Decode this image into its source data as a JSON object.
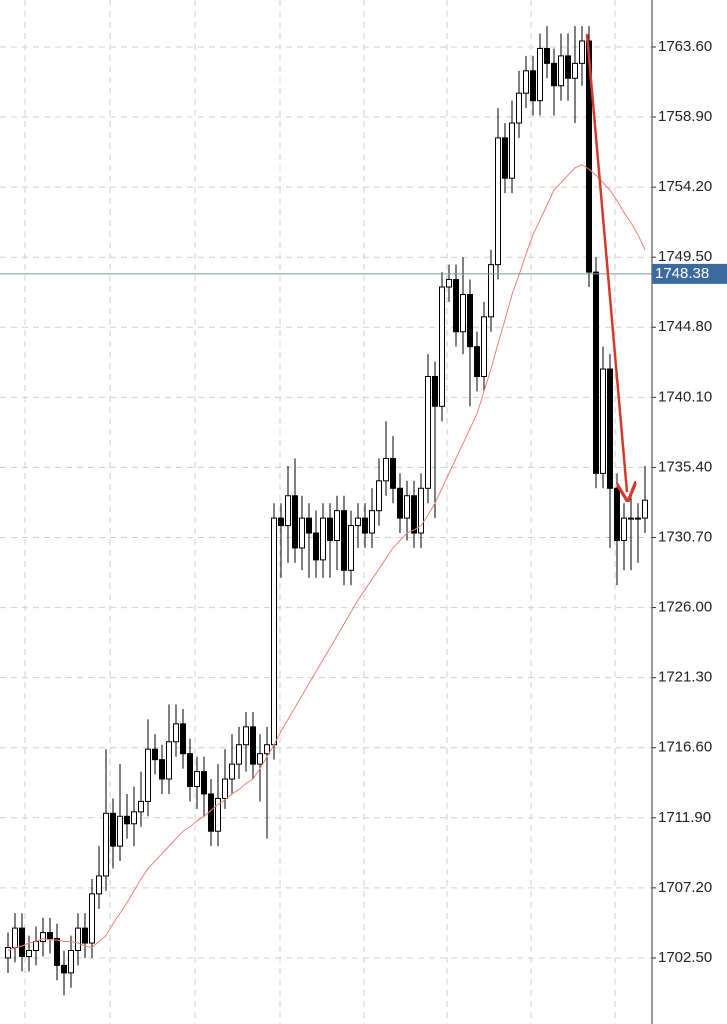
{
  "chart_data": {
    "type": "candlestick",
    "ylim": [
      1698.07,
      1766.75
    ],
    "yticks": [
      {
        "value": 1763.6,
        "label": "1763.60"
      },
      {
        "value": 1758.9,
        "label": "1758.90"
      },
      {
        "value": 1754.2,
        "label": "1754.20"
      },
      {
        "value": 1749.5,
        "label": "1749.50"
      },
      {
        "value": 1744.8,
        "label": "1744.80"
      },
      {
        "value": 1740.1,
        "label": "1740.10"
      },
      {
        "value": 1735.4,
        "label": "1735.40"
      },
      {
        "value": 1730.7,
        "label": "1730.70"
      },
      {
        "value": 1726,
        "label": "1726.00"
      },
      {
        "value": 1721.3,
        "label": "1721.30"
      },
      {
        "value": 1716.6,
        "label": "1716.60"
      },
      {
        "value": 1711.9,
        "label": "1711.90"
      },
      {
        "value": 1707.2,
        "label": "1707.20"
      },
      {
        "value": 1702.5,
        "label": "1702.50"
      }
    ],
    "grid": true,
    "up_color": "#ffffff",
    "down_color": "#000000",
    "ma_color": "#f08070",
    "price_line_color": "#7d93ab",
    "price_label_color": "#3d6a9e",
    "last_price": 1748.38,
    "open": [
      1702.5,
      1703.2,
      1704.5,
      1702.6,
      1703.0,
      1703.6,
      1704.2,
      1703.8,
      1702.0,
      1701.5,
      1703.0,
      1704.5,
      1703.5,
      1706.8,
      1708.0,
      1712.2,
      1710.0,
      1712.0,
      1711.5,
      1712.3,
      1713.0,
      1716.5,
      1715.8,
      1714.5,
      1717.0,
      1718.2,
      1716.2,
      1714.0,
      1715.0,
      1713.5,
      1711.0,
      1713.2,
      1714.5,
      1715.5,
      1716.8,
      1718.0,
      1715.5,
      1716.2,
      1716.8,
      1732.0,
      1731.5,
      1733.5,
      1730.0,
      1732.0,
      1731.0,
      1729.2,
      1732.0,
      1730.5,
      1732.5,
      1728.5,
      1731.5,
      1732.0,
      1731.0,
      1732.5,
      1734.5,
      1736.0,
      1734.0,
      1732.0,
      1733.5,
      1731.0,
      1734.0,
      1741.5,
      1739.5,
      1747.5,
      1748.0,
      1744.5,
      1747.0,
      1743.5,
      1741.5,
      1745.5,
      1749.0,
      1757.5,
      1754.8,
      1758.5,
      1760.5,
      1762.0,
      1760.0,
      1763.5,
      1762.5,
      1761.0,
      1763.0,
      1761.5,
      1762.5,
      1764.0,
      1748.5,
      1735.0,
      1742.0,
      1734.0,
      1730.5,
      1732.0,
      1732.0,
      1732.0
    ],
    "high": [
      1704.2,
      1705.5,
      1705.5,
      1704.0,
      1704.6,
      1705.2,
      1705.2,
      1704.8,
      1703.0,
      1704.0,
      1705.5,
      1705.5,
      1707.8,
      1710.0,
      1716.5,
      1713.2,
      1715.5,
      1713.5,
      1714.0,
      1715.0,
      1718.5,
      1717.5,
      1716.8,
      1719.5,
      1719.5,
      1719.2,
      1717.2,
      1716.0,
      1716.0,
      1714.5,
      1715.5,
      1716.5,
      1717.5,
      1718.0,
      1719.0,
      1719.0,
      1717.5,
      1718.0,
      1733.0,
      1733.0,
      1735.5,
      1736.0,
      1733.5,
      1733.0,
      1732.5,
      1733.0,
      1733.0,
      1733.5,
      1733.5,
      1732.5,
      1733.0,
      1733.0,
      1734.0,
      1736.0,
      1738.5,
      1737.5,
      1735.0,
      1734.5,
      1734.5,
      1735.0,
      1743.0,
      1742.5,
      1748.5,
      1749.0,
      1749.0,
      1749.5,
      1748.0,
      1744.5,
      1746.5,
      1750.0,
      1759.5,
      1758.5,
      1760.0,
      1762.0,
      1763.0,
      1763.0,
      1764.5,
      1765.0,
      1763.5,
      1764.5,
      1764.5,
      1765.0,
      1765.0,
      1765.0,
      1749.5,
      1743.5,
      1743.0,
      1735.0,
      1733.0,
      1733.5,
      1733.0,
      1735.5
    ],
    "low": [
      1701.5,
      1702.2,
      1701.6,
      1701.6,
      1702.0,
      1702.6,
      1702.8,
      1701.0,
      1700.0,
      1700.5,
      1702.0,
      1702.5,
      1702.5,
      1705.8,
      1707.0,
      1708.5,
      1709.0,
      1710.5,
      1710.0,
      1711.3,
      1712.0,
      1714.8,
      1713.5,
      1713.5,
      1716.0,
      1715.2,
      1713.0,
      1712.5,
      1712.0,
      1710.0,
      1710.0,
      1712.5,
      1713.5,
      1714.5,
      1715.0,
      1714.5,
      1713.0,
      1710.5,
      1715.8,
      1728.0,
      1729.0,
      1729.0,
      1728.5,
      1728.0,
      1728.0,
      1728.0,
      1728.0,
      1728.5,
      1727.5,
      1727.5,
      1730.0,
      1730.0,
      1730.0,
      1731.5,
      1733.5,
      1733.0,
      1731.0,
      1730.5,
      1730.0,
      1730.0,
      1733.0,
      1732.0,
      1738.5,
      1746.5,
      1743.5,
      1743.0,
      1739.5,
      1740.5,
      1740.5,
      1744.5,
      1748.0,
      1753.8,
      1753.8,
      1757.5,
      1759.5,
      1759.0,
      1759.0,
      1761.5,
      1759.0,
      1760.0,
      1760.0,
      1758.5,
      1761.0,
      1747.5,
      1734.0,
      1734.0,
      1730.0,
      1727.5,
      1728.5,
      1728.5,
      1729.0,
      1731.0
    ],
    "close": [
      1703.2,
      1704.5,
      1702.6,
      1703.0,
      1703.6,
      1704.2,
      1703.8,
      1702.0,
      1701.5,
      1703.0,
      1704.5,
      1703.5,
      1706.8,
      1708.0,
      1712.2,
      1710.0,
      1712.0,
      1711.5,
      1712.3,
      1713.0,
      1716.5,
      1715.8,
      1714.5,
      1717.0,
      1718.2,
      1716.2,
      1714.0,
      1715.0,
      1713.5,
      1711.0,
      1713.2,
      1714.5,
      1715.5,
      1716.8,
      1718.0,
      1715.5,
      1716.2,
      1716.8,
      1732.0,
      1731.5,
      1733.5,
      1730.0,
      1732.0,
      1731.0,
      1729.2,
      1732.0,
      1730.5,
      1732.5,
      1728.5,
      1731.5,
      1732.0,
      1731.0,
      1732.5,
      1734.5,
      1736.0,
      1734.0,
      1732.0,
      1733.5,
      1731.0,
      1734.0,
      1741.5,
      1739.5,
      1747.5,
      1748.0,
      1744.5,
      1747.0,
      1743.5,
      1741.5,
      1745.5,
      1749.0,
      1757.5,
      1754.8,
      1758.5,
      1760.5,
      1762.0,
      1760.0,
      1763.5,
      1762.5,
      1761.0,
      1763.0,
      1761.5,
      1762.5,
      1764.0,
      1748.5,
      1735.0,
      1742.0,
      1734.0,
      1730.5,
      1732.0,
      1732.0,
      1732.0,
      1733.2
    ],
    "ma": [
      1703.0,
      1703.2,
      1703.3,
      1703.5,
      1703.6,
      1703.8,
      1703.7,
      1703.7,
      1703.6,
      1703.6,
      1703.5,
      1703.3,
      1703.2,
      1703.6,
      1704.0,
      1704.8,
      1705.5,
      1706.2,
      1707.0,
      1707.8,
      1708.5,
      1709.0,
      1709.5,
      1710.0,
      1710.5,
      1711.0,
      1711.3,
      1711.7,
      1712.0,
      1712.4,
      1712.8,
      1713.1,
      1713.5,
      1713.8,
      1714.2,
      1714.5,
      1715.2,
      1716.0,
      1716.8,
      1717.7,
      1718.5,
      1719.3,
      1720.1,
      1720.9,
      1721.7,
      1722.5,
      1723.3,
      1724.1,
      1724.9,
      1725.7,
      1726.5,
      1727.2,
      1727.9,
      1728.6,
      1729.3,
      1730.0,
      1730.5,
      1731.0,
      1731.2,
      1731.5,
      1732.2,
      1733.0,
      1734.0,
      1735.0,
      1736.0,
      1737.0,
      1738.0,
      1739.0,
      1740.5,
      1742.0,
      1743.7,
      1745.3,
      1747.0,
      1748.3,
      1749.7,
      1751.0,
      1752.0,
      1753.0,
      1754.0,
      1754.5,
      1755.0,
      1755.5,
      1755.7,
      1755.4,
      1755.0,
      1754.5,
      1754.0,
      1753.3,
      1752.5,
      1751.8,
      1751.0,
      1750.0
    ]
  }
}
